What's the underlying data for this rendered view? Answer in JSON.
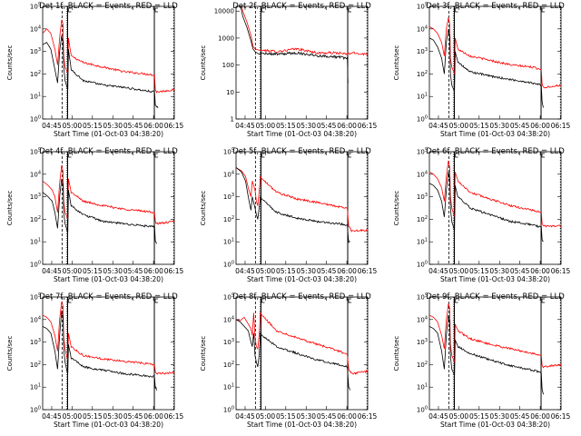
{
  "ytitle": "Counts/sec",
  "xtitle": "Start Time (01-Oct-03 04:38:20)",
  "colors": {
    "events": "#000000",
    "lld": "#ff0000",
    "background": "#ffffff"
  },
  "chart_data": [
    {
      "type": "line",
      "title": "Det 1f, BLACK = Events, RED = LLD",
      "x_ticks": [
        "04:45",
        "05:00",
        "05:15",
        "05:30",
        "05:45",
        "06:00",
        "06:15"
      ],
      "y_ticks": [
        "10^0",
        "10^1",
        "10^2",
        "10^3",
        "10^4",
        "10^5"
      ],
      "log_y": true,
      "ylim": [
        1,
        100000
      ],
      "series": [
        {
          "name": "Events",
          "color": "#000000",
          "x": [
            4.5,
            5.5,
            6.5,
            8,
            9,
            10.5,
            12,
            15,
            18,
            21,
            24,
            28,
            34,
            40,
            46,
            50,
            53.4,
            54.5,
            55
          ],
          "y": [
            2000,
            8000,
            6000,
            40,
            30,
            2000,
            200,
            120,
            60,
            50,
            45,
            40,
            35,
            32,
            30,
            30,
            30,
            25,
            25
          ]
        },
        {
          "name": "LLD",
          "color": "#ff0000",
          "x": [
            4.5,
            5.5,
            6.5,
            8,
            9,
            10.5,
            12,
            15,
            18,
            21,
            24,
            28,
            34,
            40,
            46,
            50,
            53.4,
            54.5,
            59
          ]
        },
        {
          "y": []
        }
      ]
    },
    {
      "type": "line",
      "title": "Det 2f, BLACK = Events, RED = LLD",
      "x_ticks": [
        "04:45",
        "05:00",
        "05:15",
        "05:30",
        "05:45",
        "06:00",
        "06:15"
      ],
      "y_ticks": [
        "1",
        "10",
        "100",
        "1000",
        "10000"
      ],
      "log_y": true,
      "ylim": [
        1,
        15000
      ]
    },
    {
      "type": "line",
      "title": "Det 3f, BLACK = Events, RED = LLD",
      "x_ticks": [
        "04:45",
        "05:00",
        "05:15",
        "05:30",
        "05:45",
        "06:00",
        "06:15"
      ],
      "y_ticks": [
        "10^0",
        "10^1",
        "10^2",
        "10^3",
        "10^4",
        "10^5"
      ],
      "log_y": true,
      "ylim": [
        1,
        100000
      ]
    },
    {
      "type": "line",
      "title": "Det 4f, BLACK = Events, RED = LLD",
      "x_ticks": [
        "04:45",
        "05:00",
        "05:15",
        "05:30",
        "05:45",
        "06:00",
        "06:15"
      ],
      "y_ticks": [
        "10^0",
        "10^1",
        "10^2",
        "10^3",
        "10^4",
        "10^5"
      ],
      "log_y": true,
      "ylim": [
        1,
        100000
      ]
    },
    {
      "type": "line",
      "title": "Det 5f, BLACK = Events, RED = LLD",
      "x_ticks": [
        "04:45",
        "05:00",
        "05:15",
        "05:30",
        "05:45",
        "06:00",
        "06:15"
      ],
      "y_ticks": [
        "10^0",
        "10^1",
        "10^2",
        "10^3",
        "10^4",
        "10^5"
      ],
      "log_y": true,
      "ylim": [
        1,
        100000
      ]
    },
    {
      "type": "line",
      "title": "Det 6f, BLACK = Events, RED = LLD",
      "x_ticks": [
        "04:45",
        "05:00",
        "05:15",
        "05:30",
        "05:45",
        "06:00",
        "06:15"
      ],
      "y_ticks": [
        "10^0",
        "10^1",
        "10^2",
        "10^3",
        "10^4",
        "10^5"
      ],
      "log_y": true,
      "ylim": [
        1,
        100000
      ]
    },
    {
      "type": "line",
      "title": "Det 7f, BLACK = Events, RED = LLD",
      "x_ticks": [
        "04:45",
        "05:00",
        "05:15",
        "05:30",
        "05:45",
        "06:00",
        "06:15"
      ],
      "y_ticks": [
        "10^0",
        "10^1",
        "10^2",
        "10^3",
        "10^4",
        "10^5"
      ],
      "log_y": true,
      "ylim": [
        1,
        100000
      ]
    },
    {
      "type": "line",
      "title": "Det 8f, BLACK = Events, RED = LLD",
      "x_ticks": [
        "04:45",
        "05:00",
        "05:15",
        "05:30",
        "05:45",
        "06:00",
        "06:15"
      ],
      "y_ticks": [
        "10^0",
        "10^1",
        "10^2",
        "10^3",
        "10^4",
        "10^5"
      ],
      "log_y": true,
      "ylim": [
        1,
        100000
      ]
    },
    {
      "type": "line",
      "title": "Det 9f, BLACK = Events, RED = LLD",
      "x_ticks": [
        "04:45",
        "05:00",
        "05:15",
        "05:30",
        "05:45",
        "06:00",
        "06:15"
      ],
      "y_ticks": [
        "10^0",
        "10^1",
        "10^2",
        "10^3",
        "10^4",
        "10^5"
      ],
      "log_y": true,
      "ylim": [
        1,
        100000
      ]
    }
  ]
}
